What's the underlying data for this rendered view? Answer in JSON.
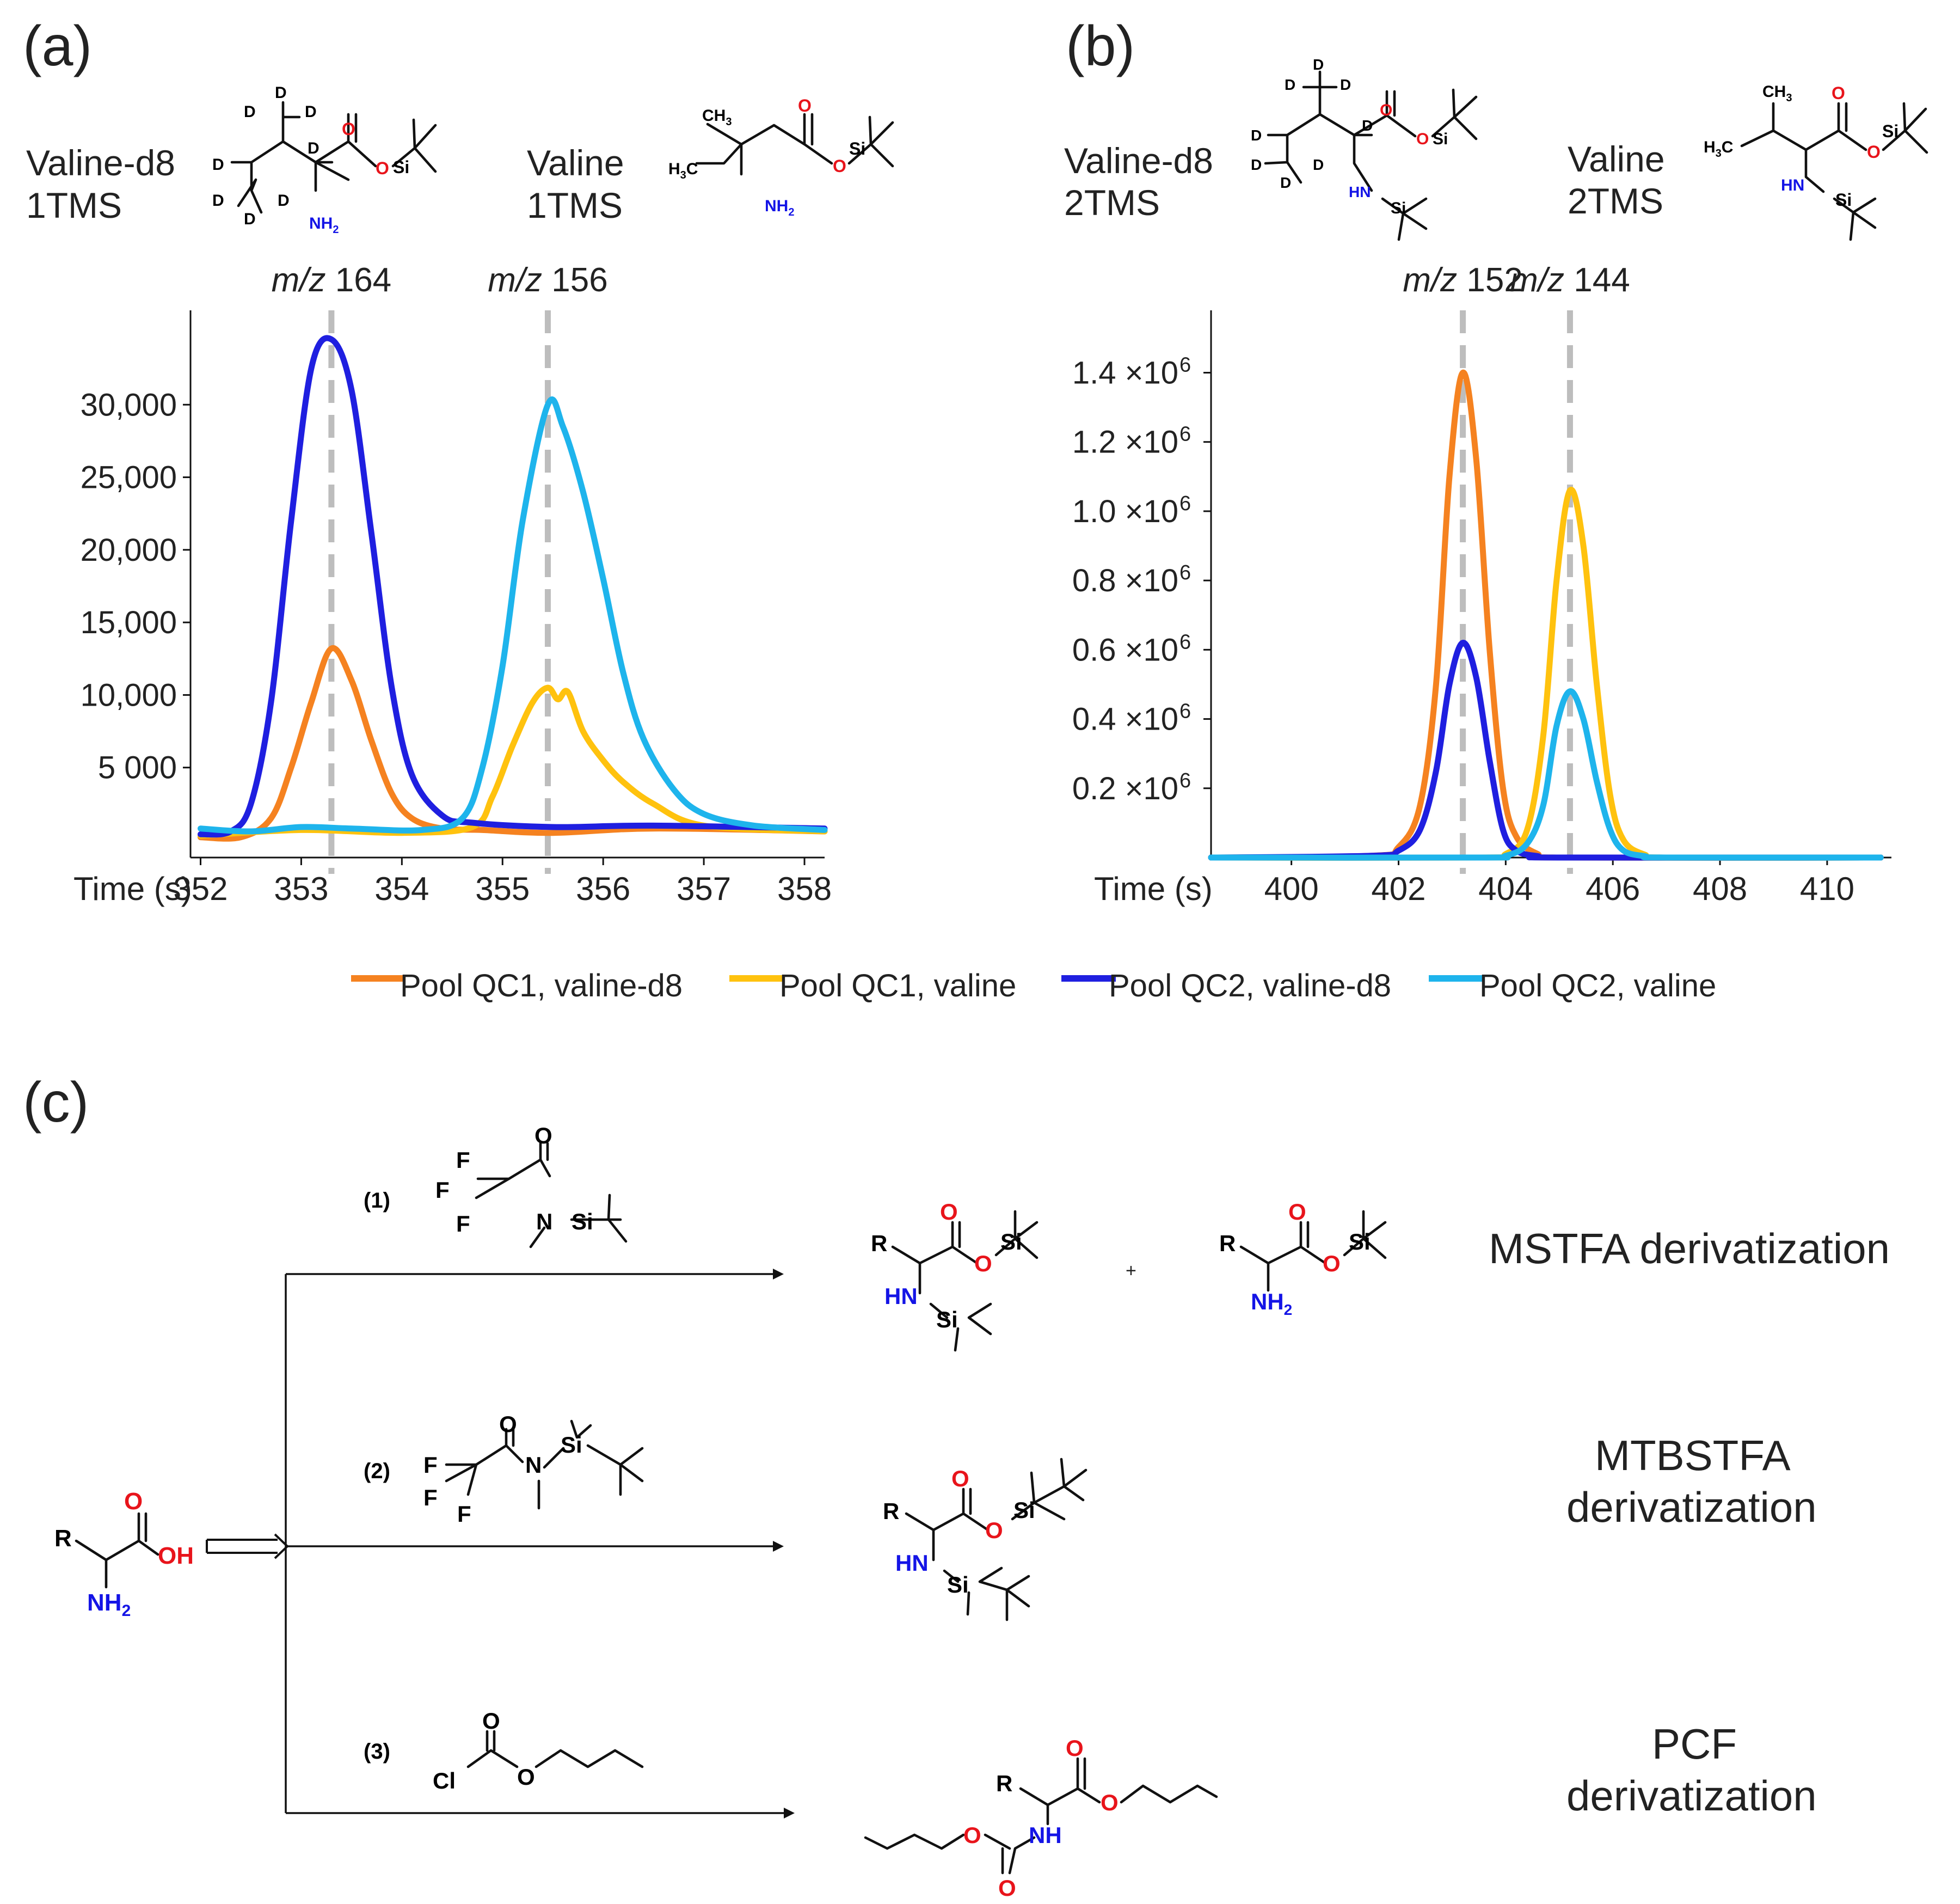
{
  "colors": {
    "pool_qc1_valine_d8": "#F58220",
    "pool_qc1_valine": "#FFC20E",
    "pool_qc2_valine_d8": "#1F1FE0",
    "pool_qc2_valine": "#1EB4EC",
    "guide": "#BDBDBD",
    "oxygen": "#E8141B",
    "nitrogen": "#1414E6"
  },
  "panels": {
    "a": {
      "label": "(a)",
      "compounds": [
        {
          "name_line1": "Valine-d8",
          "name_line2": "1TMS"
        },
        {
          "name_line1": "Valine",
          "name_line2": "1TMS"
        }
      ]
    },
    "b": {
      "label": "(b)",
      "compounds": [
        {
          "name_line1": "Valine-d8",
          "name_line2": "2TMS"
        },
        {
          "name_line1": "Valine",
          "name_line2": "2TMS"
        }
      ]
    },
    "c": {
      "label": "(c)",
      "routes": [
        {
          "label": "(1)",
          "name": "MSTFA derivatization"
        },
        {
          "label": "(2)",
          "name_line1": "MTBSTFA",
          "name_line2": "derivatization"
        },
        {
          "label": "(3)",
          "name_line1": "PCF",
          "name_line2": "derivatization"
        }
      ],
      "plus": "+"
    }
  },
  "atoms": {
    "O": "O",
    "OH": "OH",
    "Si": "Si",
    "N": "N",
    "NH": "NH",
    "HN": "HN",
    "NH2": "NH",
    "sub2": "2",
    "D": "D",
    "CH3": "CH",
    "sub3": "3",
    "H3C_H": "H",
    "H3C_C": "C",
    "F": "F",
    "Cl": "Cl",
    "R": "R"
  },
  "chart_data": [
    {
      "type": "line",
      "panel": "a",
      "xlabel": "Time (s)",
      "ylabel": "",
      "xlim": [
        351.9,
        358.2
      ],
      "ylim": [
        -1200,
        36500
      ],
      "xticks": [
        352,
        353,
        354,
        355,
        356,
        357,
        358
      ],
      "xtick_labels": [
        "352",
        "353",
        "354",
        "355",
        "356",
        "357",
        "358"
      ],
      "yticks": [
        5000,
        10000,
        15000,
        20000,
        25000,
        30000
      ],
      "ytick_labels": [
        "5 000",
        "10,000",
        "15,000",
        "20,000",
        "25,000",
        "30,000"
      ],
      "guide_lines": [
        {
          "x": 353.3,
          "label_italic": "m/z",
          "label_value": "164"
        },
        {
          "x": 355.45,
          "label_italic": "m/z",
          "label_value": "156"
        }
      ],
      "series": [
        {
          "name": "Pool QC1, valine-d8",
          "x": [
            352.0,
            352.4,
            352.7,
            352.9,
            353.1,
            353.3,
            353.5,
            353.7,
            353.9,
            354.1,
            354.4,
            354.8,
            355.5,
            356.5,
            358.2
          ],
          "y": [
            200,
            200,
            1500,
            5000,
            9500,
            13200,
            11000,
            6800,
            3200,
            1500,
            800,
            700,
            500,
            800,
            600
          ]
        },
        {
          "name": "Pool QC1, valine",
          "x": [
            352.0,
            353.0,
            354.0,
            354.7,
            354.9,
            355.1,
            355.3,
            355.45,
            355.55,
            355.65,
            355.8,
            356.0,
            356.2,
            356.5,
            357.0,
            358.2
          ],
          "y": [
            300,
            700,
            500,
            900,
            3000,
            6500,
            9500,
            10500,
            9700,
            10200,
            7500,
            5500,
            4000,
            2500,
            1000,
            600
          ]
        },
        {
          "name": "Pool QC2, valine-d8",
          "x": [
            352.0,
            352.3,
            352.5,
            352.7,
            352.9,
            353.1,
            353.3,
            353.5,
            353.7,
            353.9,
            354.1,
            354.4,
            354.7,
            355.5,
            356.5,
            358.2
          ],
          "y": [
            400,
            600,
            2500,
            9500,
            22000,
            32500,
            34500,
            31000,
            21000,
            10500,
            4500,
            1700,
            1200,
            900,
            1000,
            800
          ]
        },
        {
          "name": "Pool QC2, valine",
          "x": [
            352.0,
            352.5,
            353.0,
            353.5,
            354.2,
            354.6,
            354.8,
            355.0,
            355.2,
            355.45,
            355.6,
            355.8,
            356.0,
            356.2,
            356.4,
            356.7,
            357.0,
            357.5,
            358.2
          ],
          "y": [
            800,
            600,
            900,
            800,
            700,
            1500,
            5000,
            12000,
            22000,
            30000,
            28500,
            24000,
            18000,
            11500,
            7000,
            3500,
            1800,
            1000,
            700
          ]
        }
      ]
    },
    {
      "type": "line",
      "panel": "b",
      "xlabel": "Time (s)",
      "ylabel": "",
      "xlim": [
        398.5,
        411.2
      ],
      "ylim": [
        0,
        1580000
      ],
      "xticks": [
        400,
        402,
        404,
        406,
        408,
        410
      ],
      "xtick_labels": [
        "400",
        "402",
        "404",
        "406",
        "408",
        "410"
      ],
      "yticks": [
        200000,
        400000,
        600000,
        800000,
        1000000,
        1200000,
        1400000
      ],
      "ytick_labels": [
        "0.2 ×10",
        "0.4 ×10",
        "0.6 ×10",
        "0.8 ×10",
        "1.0 ×10",
        "1.2 ×10",
        "1.4 ×10"
      ],
      "ytick_exponent": "6",
      "guide_lines": [
        {
          "x": 403.2,
          "label_italic": "m/z",
          "label_value": "152"
        },
        {
          "x": 405.2,
          "label_italic": "m/z",
          "label_value": "144"
        }
      ],
      "series": [
        {
          "name": "Pool QC1, valine-d8",
          "x": [
            398.5,
            401.5,
            402.0,
            402.4,
            402.7,
            402.95,
            403.2,
            403.45,
            403.7,
            403.95,
            404.2,
            404.6,
            405.0,
            411.0
          ],
          "y": [
            0,
            5000,
            30000,
            150000,
            500000,
            1100000,
            1400000,
            1150000,
            600000,
            200000,
            60000,
            10000,
            0,
            0
          ]
        },
        {
          "name": "Pool QC1, valine",
          "x": [
            398.5,
            403.5,
            404.0,
            404.4,
            404.7,
            404.95,
            405.2,
            405.45,
            405.7,
            405.95,
            406.2,
            406.6,
            407.0,
            411.0
          ],
          "y": [
            0,
            0,
            10000,
            80000,
            350000,
            800000,
            1060000,
            900000,
            500000,
            180000,
            50000,
            8000,
            0,
            0
          ]
        },
        {
          "name": "Pool QC2, valine-d8",
          "x": [
            398.5,
            401.5,
            402.0,
            402.4,
            402.7,
            402.95,
            403.2,
            403.45,
            403.7,
            403.95,
            404.2,
            404.6,
            405.0,
            411.0
          ],
          "y": [
            0,
            5000,
            20000,
            80000,
            250000,
            500000,
            620000,
            520000,
            280000,
            80000,
            20000,
            4000,
            0,
            0
          ]
        },
        {
          "name": "Pool QC2, valine",
          "x": [
            398.5,
            403.5,
            404.0,
            404.4,
            404.7,
            404.95,
            405.2,
            405.45,
            405.7,
            405.95,
            406.2,
            406.6,
            407.0,
            411.0
          ],
          "y": [
            0,
            0,
            5000,
            40000,
            150000,
            380000,
            480000,
            400000,
            220000,
            80000,
            20000,
            4000,
            0,
            0
          ]
        }
      ]
    }
  ],
  "legend": [
    {
      "label": "Pool QC1, valine-d8",
      "color_key": "pool_qc1_valine_d8"
    },
    {
      "label": "Pool QC1, valine",
      "color_key": "pool_qc1_valine"
    },
    {
      "label": "Pool QC2, valine-d8",
      "color_key": "pool_qc2_valine_d8"
    },
    {
      "label": "Pool QC2, valine",
      "color_key": "pool_qc2_valine"
    }
  ]
}
